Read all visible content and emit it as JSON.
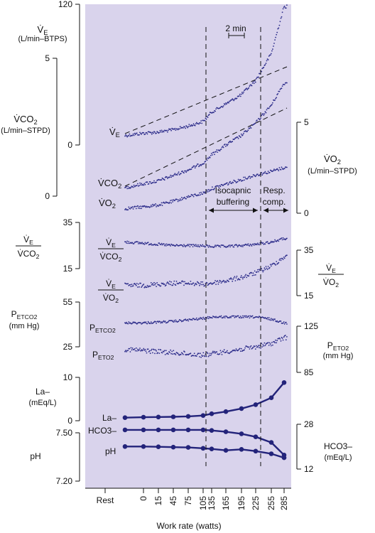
{
  "chart_data": {
    "type": "scatter",
    "xlabel": "Work rate (watts)",
    "x_ticks": [
      "Rest",
      "0",
      "15",
      "45",
      "75",
      "105",
      "135",
      "165",
      "195",
      "225",
      "255",
      "285"
    ],
    "time_scale_label": "2 min",
    "regions": [
      {
        "name": "Isocapnic buffering",
        "from": "135",
        "to": "225"
      },
      {
        "name": "Resp. comp.",
        "from": "225",
        "to": "285"
      }
    ],
    "panels": [
      {
        "id": "ve",
        "left_axis": {
          "label": "V̇E",
          "unit": "(L/min–BTPS)",
          "ticks": [
            "120",
            "0"
          ],
          "range": [
            0,
            120
          ]
        },
        "series": [
          {
            "name": "V̇E",
            "points": [
              [
                "Rest",
                8
              ],
              [
                "0",
                10
              ],
              [
                "15",
                11
              ],
              [
                "45",
                13
              ],
              [
                "75",
                16
              ],
              [
                "105",
                20
              ],
              [
                "135",
                28
              ],
              [
                "165",
                35
              ],
              [
                "195",
                43
              ],
              [
                "225",
                55
              ],
              [
                "255",
                78
              ],
              [
                "285",
                118
              ]
            ]
          }
        ]
      },
      {
        "id": "vco2_vo2",
        "left_axis": {
          "label": "V̇CO2",
          "unit": "(L/min–STPD)",
          "ticks": [
            "5",
            "0"
          ],
          "range": [
            0,
            5
          ]
        },
        "right_axis": {
          "label": "V̇O2",
          "unit": "(L/min–STPD)",
          "ticks": [
            "5",
            "0"
          ],
          "range": [
            0,
            5
          ]
        },
        "series": [
          {
            "name": "V̇CO2",
            "points": [
              [
                "Rest",
                0.3
              ],
              [
                "0",
                0.45
              ],
              [
                "15",
                0.55
              ],
              [
                "45",
                0.75
              ],
              [
                "75",
                0.95
              ],
              [
                "105",
                1.2
              ],
              [
                "135",
                1.5
              ],
              [
                "165",
                1.85
              ],
              [
                "195",
                2.2
              ],
              [
                "225",
                2.65
              ],
              [
                "255",
                3.3
              ],
              [
                "285",
                4.1
              ]
            ]
          },
          {
            "name": "V̇O2",
            "points": [
              [
                "Rest",
                0.25
              ],
              [
                "0",
                0.35
              ],
              [
                "15",
                0.45
              ],
              [
                "45",
                0.65
              ],
              [
                "75",
                0.9
              ],
              [
                "105",
                1.1
              ],
              [
                "135",
                1.35
              ],
              [
                "165",
                1.6
              ],
              [
                "195",
                1.85
              ],
              [
                "225",
                2.1
              ],
              [
                "255",
                2.3
              ],
              [
                "285",
                2.5
              ]
            ]
          }
        ]
      },
      {
        "id": "ratios",
        "left_axis": {
          "label": "V̇E / V̇CO2",
          "ticks": [
            "35",
            "15"
          ],
          "range": [
            15,
            35
          ]
        },
        "right_axis": {
          "label": "V̇E / V̇O2",
          "ticks": [
            "35",
            "15"
          ],
          "range": [
            15,
            35
          ]
        },
        "series": [
          {
            "name": "V̇E/V̇CO2",
            "points": [
              [
                "Rest",
                26.5
              ],
              [
                "0",
                26
              ],
              [
                "15",
                25.5
              ],
              [
                "45",
                25
              ],
              [
                "75",
                25
              ],
              [
                "105",
                24.8
              ],
              [
                "135",
                24.6
              ],
              [
                "165",
                24.6
              ],
              [
                "195",
                25
              ],
              [
                "225",
                25.5
              ],
              [
                "255",
                26.5
              ],
              [
                "285",
                28
              ]
            ]
          },
          {
            "name": "V̇E/V̇O2",
            "points": [
              [
                "Rest",
                19.5
              ],
              [
                "0",
                19.5
              ],
              [
                "15",
                20
              ],
              [
                "45",
                20.5
              ],
              [
                "75",
                20.5
              ],
              [
                "105",
                20
              ],
              [
                "135",
                20.5
              ],
              [
                "165",
                21.5
              ],
              [
                "195",
                23
              ],
              [
                "225",
                25
              ],
              [
                "255",
                28
              ],
              [
                "285",
                32
              ]
            ]
          }
        ]
      },
      {
        "id": "pet",
        "left_axis": {
          "label": "PETCO2",
          "unit": "(mm Hg)",
          "ticks": [
            "55",
            "25"
          ],
          "range": [
            25,
            55
          ]
        },
        "right_axis": {
          "label": "PETO2",
          "unit": "(mm Hg)",
          "ticks": [
            "125",
            "85"
          ],
          "range": [
            85,
            125
          ]
        },
        "series": [
          {
            "name": "PETCO2",
            "points": [
              [
                "Rest",
                41
              ],
              [
                "0",
                41
              ],
              [
                "15",
                41.5
              ],
              [
                "45",
                42
              ],
              [
                "75",
                43
              ],
              [
                "105",
                44
              ],
              [
                "135",
                45
              ],
              [
                "165",
                45
              ],
              [
                "195",
                45
              ],
              [
                "225",
                45
              ],
              [
                "255",
                43.5
              ],
              [
                "285",
                41
              ]
            ]
          },
          {
            "name": "PETO2",
            "points": [
              [
                "Rest",
                105
              ],
              [
                "0",
                104
              ],
              [
                "15",
                103
              ],
              [
                "45",
                102
              ],
              [
                "75",
                101
              ],
              [
                "105",
                100
              ],
              [
                "135",
                101
              ],
              [
                "165",
                103
              ],
              [
                "195",
                105
              ],
              [
                "225",
                107
              ],
              [
                "255",
                110
              ],
              [
                "285",
                115
              ]
            ]
          }
        ]
      },
      {
        "id": "la",
        "left_axis": {
          "label": "La–",
          "unit": "(mEq/L)",
          "ticks": [
            "10",
            "0"
          ],
          "range": [
            0,
            10
          ]
        },
        "series": [
          {
            "name": "La–",
            "points": [
              [
                "Rest",
                0.7
              ],
              [
                "0",
                0.8
              ],
              [
                "15",
                0.85
              ],
              [
                "45",
                0.9
              ],
              [
                "75",
                1.0
              ],
              [
                "105",
                1.2
              ],
              [
                "135",
                1.6
              ],
              [
                "165",
                2.1
              ],
              [
                "195",
                2.8
              ],
              [
                "225",
                3.7
              ],
              [
                "255",
                5.3
              ],
              [
                "285",
                8.8
              ]
            ]
          }
        ]
      },
      {
        "id": "ph_hco3",
        "left_axis": {
          "label": "pH",
          "ticks": [
            "7.50",
            "7.20"
          ],
          "range": [
            7.2,
            7.5
          ]
        },
        "right_axis": {
          "label": "HCO3–",
          "unit": "(mEq/L)",
          "ticks": [
            "28",
            "12"
          ],
          "range": [
            12,
            28
          ]
        },
        "series": [
          {
            "name": "HCO3–",
            "axis": "right",
            "points": [
              [
                "Rest",
                26
              ],
              [
                "0",
                26
              ],
              [
                "15",
                26
              ],
              [
                "45",
                26
              ],
              [
                "75",
                26
              ],
              [
                "105",
                26
              ],
              [
                "135",
                25.8
              ],
              [
                "165",
                25.3
              ],
              [
                "195",
                24.6
              ],
              [
                "225",
                23.5
              ],
              [
                "255",
                21.5
              ],
              [
                "285",
                17
              ]
            ]
          },
          {
            "name": "pH",
            "axis": "left",
            "points": [
              [
                "Rest",
                7.415
              ],
              [
                "0",
                7.415
              ],
              [
                "15",
                7.413
              ],
              [
                "45",
                7.411
              ],
              [
                "75",
                7.409
              ],
              [
                "105",
                7.404
              ],
              [
                "135",
                7.4
              ],
              [
                "165",
                7.391
              ],
              [
                "195",
                7.397
              ],
              [
                "225",
                7.386
              ],
              [
                "255",
                7.37
              ],
              [
                "285",
                7.345
              ]
            ]
          }
        ]
      }
    ]
  }
}
